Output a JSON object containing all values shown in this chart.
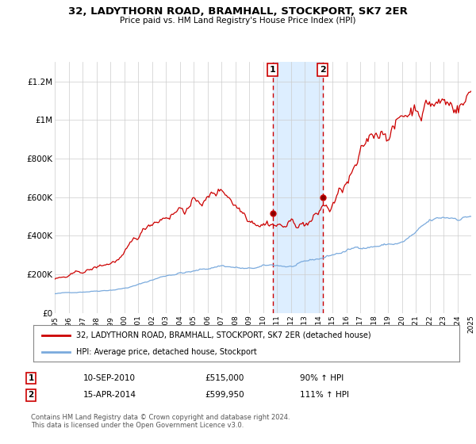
{
  "title": "32, LADYTHORN ROAD, BRAMHALL, STOCKPORT, SK7 2ER",
  "subtitle": "Price paid vs. HM Land Registry's House Price Index (HPI)",
  "ylim": [
    0,
    1300000
  ],
  "yticks": [
    0,
    200000,
    400000,
    600000,
    800000,
    1000000,
    1200000
  ],
  "ytick_labels": [
    "£0",
    "£200K",
    "£400K",
    "£600K",
    "£800K",
    "£1M",
    "£1.2M"
  ],
  "x_start_year": 1995,
  "x_end_year": 2025,
  "sale1_date": 2010.7,
  "sale1_label": "1",
  "sale1_price": 515000,
  "sale2_date": 2014.3,
  "sale2_label": "2",
  "sale2_price": 599950,
  "highlight_color": "#ddeeff",
  "dashed_color": "#cc0000",
  "red_line_color": "#cc0000",
  "blue_line_color": "#7aaadd",
  "legend_label_red": "32, LADYTHORN ROAD, BRAMHALL, STOCKPORT, SK7 2ER (detached house)",
  "legend_label_blue": "HPI: Average price, detached house, Stockport",
  "annotation1": "10-SEP-2010",
  "annotation1_price": "£515,000",
  "annotation1_hpi": "90% ↑ HPI",
  "annotation2": "15-APR-2014",
  "annotation2_price": "£599,950",
  "annotation2_hpi": "111% ↑ HPI",
  "footer": "Contains HM Land Registry data © Crown copyright and database right 2024.\nThis data is licensed under the Open Government Licence v3.0.",
  "background_color": "#ffffff",
  "grid_color": "#cccccc"
}
